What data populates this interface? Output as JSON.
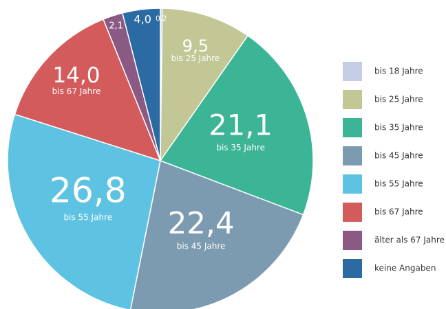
{
  "chart_data": {
    "type": "pie",
    "categories": [
      "bis 18 Jahre",
      "bis 25 Jahre",
      "bis 35 Jahre",
      "bis 45 Jahre",
      "bis 55 Jahre",
      "bis 67 Jahre",
      "älter als 67 Jahre",
      "keine Angaben"
    ],
    "values": [
      0.2,
      9.5,
      21.1,
      22.4,
      26.8,
      14.0,
      2.1,
      4.0
    ],
    "value_labels": [
      "0,2",
      "9,5",
      "21,1",
      "22,4",
      "26,8",
      "14,0",
      "2,1",
      "4,0"
    ],
    "colors": [
      "#c5cde6",
      "#c2c795",
      "#3cb496",
      "#7c9bb0",
      "#5ec3e2",
      "#d45b5b",
      "#8a5a84",
      "#2b6aa3"
    ],
    "legend": "right"
  }
}
